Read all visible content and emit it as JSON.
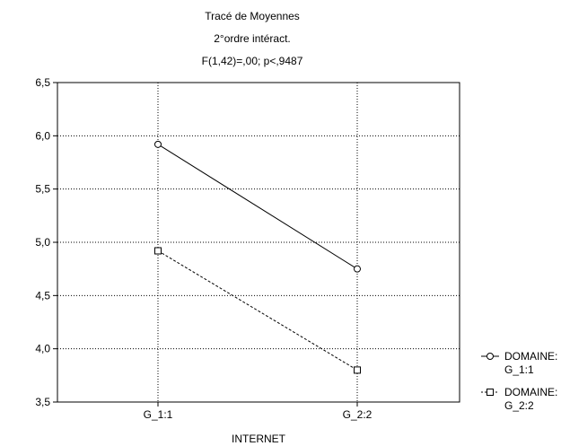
{
  "chart_data": {
    "type": "line",
    "title": "Tracé de Moyennes",
    "subtitle": "2°ordre intéract.",
    "stats": "F(1,42)=,00; p<,9487",
    "xlabel": "INTERNET",
    "ylabel": "",
    "categories": [
      "G_1:1",
      "G_2:2"
    ],
    "ylim": [
      3.5,
      6.5
    ],
    "yticks": [
      "3,5",
      "4,0",
      "4,5",
      "5,0",
      "5,5",
      "6,0",
      "6,5"
    ],
    "grid": true,
    "legend_position": "right",
    "series": [
      {
        "name": "DOMAINE:",
        "name2": "G_1:1",
        "values": [
          5.92,
          4.75
        ],
        "marker": "circle",
        "line": "solid",
        "color": "#000000"
      },
      {
        "name": "DOMAINE:",
        "name2": "G_2:2",
        "values": [
          4.92,
          3.8
        ],
        "marker": "square",
        "line": "dashed",
        "color": "#000000"
      }
    ]
  }
}
